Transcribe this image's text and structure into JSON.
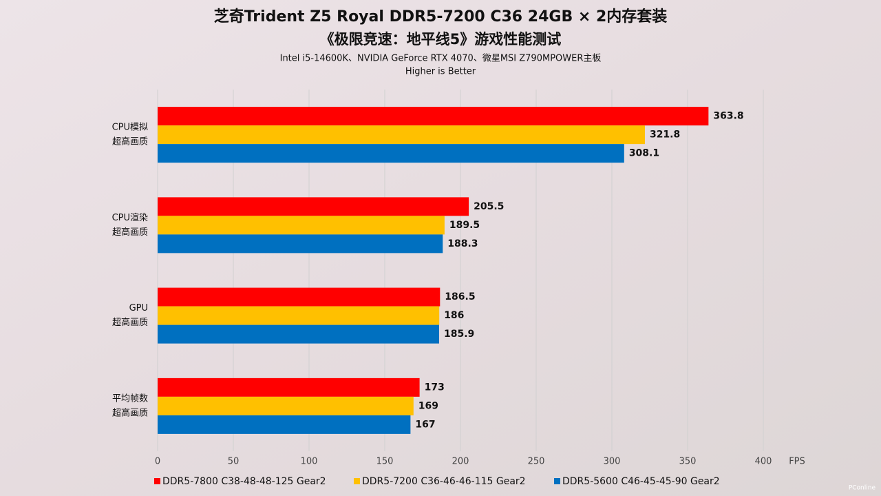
{
  "chart_data": {
    "type": "hbar",
    "title": "芝奇Trident Z5 Royal DDR5-7200 C36 24GB × 2内存套装",
    "subtitle": "《极限竞速：地平线5》游戏性能测试",
    "notes": [
      "Intel i5-14600K、NVIDIA GeForce RTX 4070、微星MSI Z790MPOWER主板",
      "Higher is Better"
    ],
    "categories": [
      [
        "CPU模拟",
        "超高画质"
      ],
      [
        "CPU渲染",
        "超高画质"
      ],
      [
        "GPU",
        "超高画质"
      ],
      [
        "平均帧数",
        "超高画质"
      ]
    ],
    "series": [
      {
        "name": "DDR5-7800 C38-48-48-125 Gear2",
        "color": "#ff0000",
        "values": [
          363.8,
          205.5,
          186.5,
          173
        ]
      },
      {
        "name": "DDR5-7200 C36-46-46-115 Gear2",
        "color": "#ffc000",
        "values": [
          321.8,
          189.5,
          186,
          169
        ]
      },
      {
        "name": "DDR5-5600 C46-45-45-90 Gear2",
        "color": "#0070c0",
        "values": [
          308.1,
          188.3,
          185.9,
          167
        ]
      }
    ],
    "xlabel": "FPS",
    "xlim": [
      0,
      400
    ],
    "xticks": [
      0,
      50,
      100,
      150,
      200,
      250,
      300,
      350,
      400
    ],
    "grid": true,
    "legend": "bottom",
    "watermark": "PConline"
  }
}
